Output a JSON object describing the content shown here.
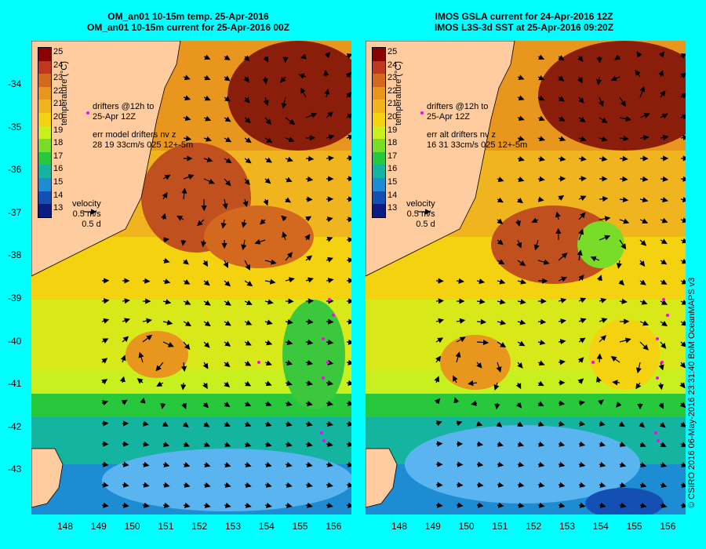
{
  "left_panel": {
    "title_line1": "OM_an01 10-15m temp. 25-Apr-2016",
    "title_line2": "OM_an01 10-15m current for 25-Apr-2016 00Z",
    "drifter_label": "drifters @12h to",
    "drifter_date": "25-Apr 12Z",
    "err_line1": "err model drifters nv z",
    "err_line2": "28 19 33cm/s 025 12+-5m"
  },
  "right_panel": {
    "title_line1": "IMOS GSLA current for 24-Apr-2016 12Z",
    "title_line2": "IMOS L3S-3d SST at 25-Apr-2016 09:20Z",
    "drifter_label": "drifters @12h to",
    "drifter_date": "25-Apr 12Z",
    "err_line1": "err alt drifters nv z",
    "err_line2": "16 31 33cm/s 025 12+-5m"
  },
  "colorbar": {
    "title": "temperature (°C)",
    "ticks": [
      "25",
      "24",
      "23",
      "22",
      "21",
      "20",
      "19",
      "18",
      "17",
      "16",
      "15",
      "14",
      "13"
    ],
    "colors": [
      "#8b0000",
      "#c0361e",
      "#d2691e",
      "#e8961e",
      "#f0b41e",
      "#f5d20f",
      "#c8f01e",
      "#78dc28",
      "#28c83c",
      "#14b4a0",
      "#1e8cd2",
      "#1450b4",
      "#0a1e82"
    ]
  },
  "velocity_legend": {
    "label": "velocity",
    "speed": "0.5 m/s",
    "time": "0.5 d"
  },
  "y_ticks": [
    "-34",
    "-35",
    "-36",
    "-37",
    "-38",
    "-39",
    "-40",
    "-41",
    "-42",
    "-43"
  ],
  "x_ticks": [
    "148",
    "149",
    "150",
    "151",
    "152",
    "153",
    "154",
    "155",
    "156"
  ],
  "copyright": "© CSIRO 2016   06-May-2016 23:31:40 BoM OceanMAPS v3",
  "colors": {
    "background": "#00ffff",
    "land": "#ffcca0",
    "drifter": "#ff00ff"
  }
}
